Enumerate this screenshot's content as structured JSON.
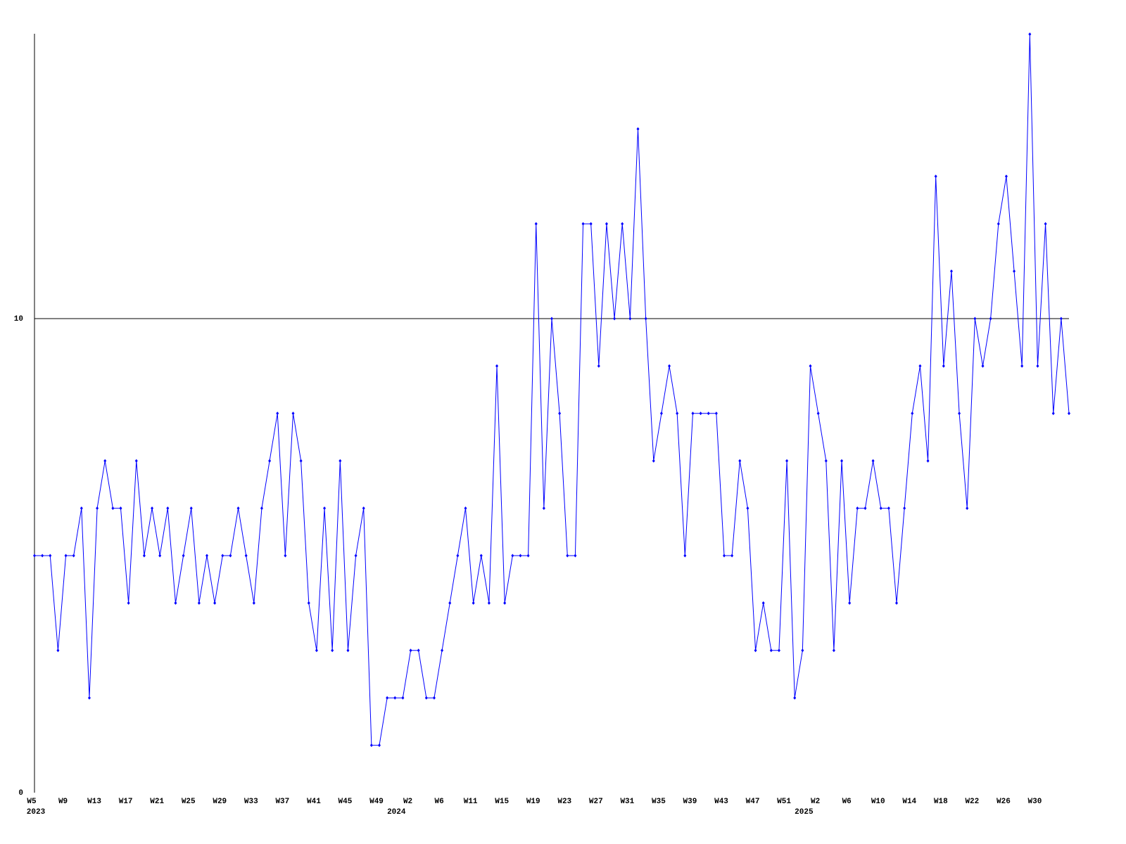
{
  "chart_data": {
    "type": "line",
    "categories": [
      "W5",
      null,
      null,
      null,
      "W9",
      null,
      null,
      null,
      "W13",
      null,
      null,
      null,
      "W17",
      null,
      null,
      null,
      "W21",
      null,
      null,
      null,
      "W25",
      null,
      null,
      null,
      "W29",
      null,
      null,
      null,
      "W33",
      null,
      null,
      null,
      "W37",
      null,
      null,
      null,
      "W41",
      null,
      null,
      null,
      "W45",
      null,
      null,
      null,
      "W49",
      null,
      null,
      null,
      "W2",
      null,
      null,
      null,
      "W6",
      null,
      null,
      null,
      "W11",
      null,
      null,
      null,
      "W15",
      null,
      null,
      null,
      "W19",
      null,
      null,
      null,
      "W23",
      null,
      null,
      null,
      "W27",
      null,
      null,
      null,
      "W31",
      null,
      null,
      null,
      "W35",
      null,
      null,
      null,
      "W39",
      null,
      null,
      null,
      "W43",
      null,
      null,
      null,
      "W47",
      null,
      null,
      null,
      "W51",
      null,
      null,
      null,
      "W2",
      null,
      null,
      null,
      "W6",
      null,
      null,
      null,
      "W10",
      null,
      null,
      null,
      "W14",
      null,
      null,
      null,
      "W18",
      null,
      null,
      null,
      "W22",
      null,
      null,
      null,
      "W26",
      null,
      null,
      null,
      "W30",
      null,
      null,
      null,
      null
    ],
    "year_labels": [
      "2023",
      null,
      null,
      null,
      null,
      null,
      null,
      null,
      null,
      null,
      null,
      null,
      null,
      null,
      null,
      null,
      null,
      null,
      null,
      null,
      null,
      null,
      null,
      null,
      null,
      null,
      null,
      null,
      null,
      null,
      null,
      null,
      null,
      null,
      null,
      null,
      null,
      null,
      null,
      null,
      null,
      null,
      null,
      null,
      null,
      null,
      "2024",
      null,
      null,
      null,
      null,
      null,
      null,
      null,
      null,
      null,
      null,
      null,
      null,
      null,
      null,
      null,
      null,
      null,
      null,
      null,
      null,
      null,
      null,
      null,
      null,
      null,
      null,
      null,
      null,
      null,
      null,
      null,
      null,
      null,
      null,
      null,
      null,
      null,
      null,
      null,
      null,
      null,
      null,
      null,
      null,
      null,
      null,
      null,
      null,
      null,
      null,
      null,
      "2025",
      null,
      null,
      null,
      null,
      null,
      null,
      null,
      null,
      null,
      null,
      null,
      null,
      null,
      null,
      null,
      null,
      null,
      null,
      null,
      null,
      null,
      null,
      null,
      null,
      null,
      null,
      null,
      null,
      null,
      null,
      null,
      null,
      null,
      null
    ],
    "series": [
      {
        "color": "#0000ff",
        "values": [
          5,
          5,
          5,
          3,
          5,
          5,
          6,
          2,
          6,
          7,
          6,
          6,
          4,
          7,
          5,
          6,
          5,
          6,
          4,
          5,
          6,
          4,
          5,
          4,
          5,
          5,
          6,
          5,
          4,
          6,
          7,
          8,
          5,
          8,
          7,
          4,
          3,
          6,
          3,
          7,
          3,
          5,
          6,
          1,
          1,
          2,
          2,
          2,
          3,
          3,
          2,
          2,
          3,
          4,
          5,
          6,
          4,
          5,
          4,
          9,
          4,
          5,
          5,
          5,
          12,
          6,
          10,
          8,
          5,
          5,
          12,
          12,
          9,
          12,
          10,
          12,
          10,
          14,
          10,
          7,
          8,
          9,
          8,
          5,
          8,
          8,
          8,
          8,
          5,
          5,
          7,
          6,
          3,
          4,
          3,
          3,
          7,
          2,
          3,
          9,
          8,
          7,
          3,
          7,
          4,
          6,
          6,
          7,
          6,
          6,
          4,
          6,
          8,
          9,
          7,
          13,
          9,
          11,
          8,
          6,
          10,
          9,
          10,
          12,
          13,
          11,
          9,
          16,
          9,
          12,
          8,
          10,
          8
        ]
      }
    ],
    "ylim": [
      0,
      16
    ],
    "yticks": [
      0,
      10
    ],
    "grid": true
  }
}
